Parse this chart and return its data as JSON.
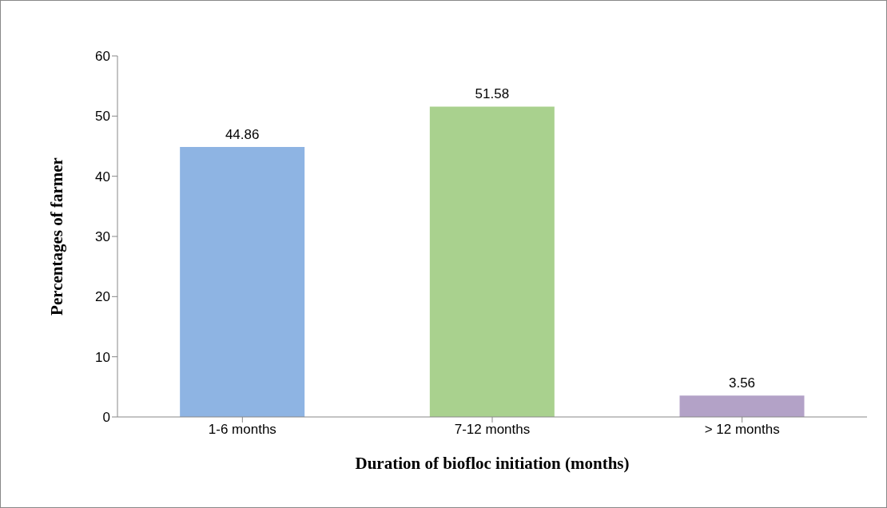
{
  "chart_data": {
    "type": "bar",
    "xlabel": "Duration of biofloc initiation (months)",
    "ylabel": "Percentages of farmer",
    "categories": [
      "1-6 months",
      "7-12 months",
      "> 12 months"
    ],
    "values": [
      44.86,
      51.58,
      3.56
    ],
    "colors": [
      "#8eb4e3",
      "#a9d18e",
      "#b3a2c7"
    ],
    "ylim": [
      0,
      60
    ],
    "yticks": [
      0,
      10,
      20,
      30,
      40,
      50,
      60
    ],
    "grid": false,
    "data_labels": true
  }
}
